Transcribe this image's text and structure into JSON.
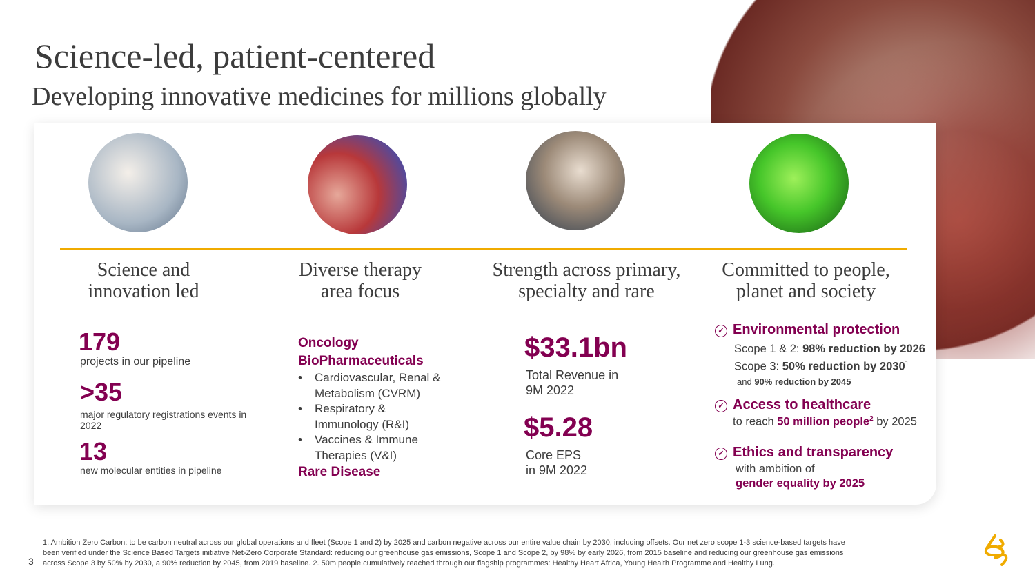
{
  "title": "Science-led, patient-centered",
  "subtitle": "Developing innovative medicines for millions globally",
  "columns": [
    {
      "title_l1": "Science and",
      "title_l2": "innovation led",
      "stats": [
        {
          "value": "179",
          "label": "projects in our pipeline"
        },
        {
          "value": ">35",
          "label": "major regulatory registrations events in 2022"
        },
        {
          "value": "13",
          "label": "new molecular entities in pipeline"
        }
      ]
    },
    {
      "title_l1": "Diverse therapy",
      "title_l2": "area focus",
      "oncology": "Oncology",
      "biopharma": "BioPharmaceuticals",
      "bullets": [
        "Cardiovascular, Renal & Metabolism (CVRM)",
        "Respiratory & Immunology (R&I)",
        "Vaccines & Immune Therapies (V&I)"
      ],
      "rare": "Rare Disease"
    },
    {
      "title_l1": "Strength across primary,",
      "title_l2": "specialty and rare",
      "revenue": "$33.1bn",
      "revenue_l1": "Total Revenue in",
      "revenue_l2": "9M 2022",
      "eps": "$5.28",
      "eps_l1": "Core EPS",
      "eps_l2": "in 9M 2022"
    },
    {
      "title_l1": "Committed to people,",
      "title_l2": "planet and society",
      "env": {
        "heading": "Environmental protection",
        "s12_pre": "Scope 1 & 2: ",
        "s12_bold": "98% reduction by 2026",
        "s3_pre": "Scope 3: ",
        "s3_bold": "50% reduction by 2030",
        "s3_sup": "1",
        "and_pre": "and ",
        "and_bold": "90% reduction by 2045"
      },
      "access": {
        "heading": "Access to healthcare",
        "pre": "to reach ",
        "bold": "50 million people",
        "sup": "2",
        "post": " by 2025"
      },
      "ethics": {
        "heading": "Ethics and transparency",
        "l1": "with ambition of",
        "l2": "gender equality by 2025"
      }
    }
  ],
  "page_number": "3",
  "footnote": "1. Ambition Zero Carbon: to be carbon neutral across our global operations and fleet (Scope 1 and 2) by 2025 and carbon negative across our entire value chain by 2030, including offsets. Our net zero scope 1-3 science-based targets have been verified under the Science Based Targets initiative Net-Zero Corporate Standard: reducing our greenhouse gas emissions, Scope 1 and Scope 2, by 98% by early 2026, from 2015 baseline and reducing our greenhouse gas emissions across Scope 3 by 50% by 2030, a 90% reduction by 2045, from 2019 baseline.  2. 50m people cumulatively reached through our flagship programmes: Healthy Heart Africa, Young Health Programme and Healthy Lung.",
  "colors": {
    "accent": "#830051",
    "gold": "#f0ab00"
  }
}
